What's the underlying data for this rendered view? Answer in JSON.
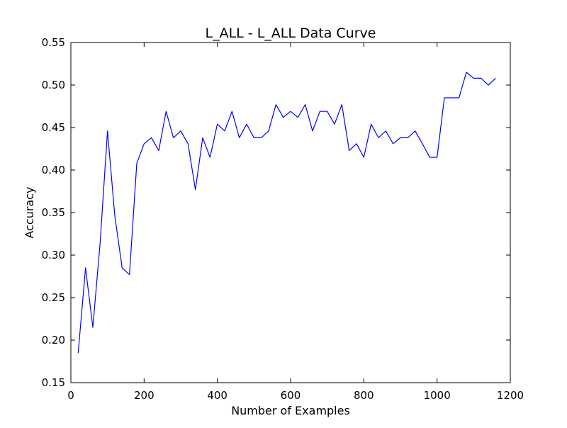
{
  "chart_data": {
    "type": "line",
    "title": "L_ALL - L_ALL Data Curve",
    "xlabel": "Number of Examples",
    "ylabel": "Accuracy",
    "xlim": [
      0,
      1200
    ],
    "ylim": [
      0.15,
      0.55
    ],
    "x_ticks": [
      0,
      200,
      400,
      600,
      800,
      1000,
      1200
    ],
    "x_tick_labels": [
      "0",
      "200",
      "400",
      "600",
      "800",
      "1000",
      "1200"
    ],
    "y_ticks": [
      0.15,
      0.2,
      0.25,
      0.3,
      0.35,
      0.4,
      0.45,
      0.5,
      0.55
    ],
    "y_tick_labels": [
      "0.15",
      "0.20",
      "0.25",
      "0.30",
      "0.35",
      "0.40",
      "0.45",
      "0.50",
      "0.55"
    ],
    "grid": false,
    "legend": "none",
    "series": [
      {
        "color": "#0000ff",
        "x": [
          20,
          40,
          60,
          80,
          100,
          120,
          140,
          160,
          180,
          200,
          220,
          240,
          260,
          280,
          300,
          320,
          340,
          360,
          380,
          400,
          420,
          440,
          460,
          480,
          500,
          520,
          540,
          560,
          580,
          600,
          620,
          640,
          660,
          680,
          700,
          720,
          740,
          760,
          780,
          800,
          820,
          840,
          860,
          880,
          900,
          920,
          940,
          960,
          980,
          1000,
          1020,
          1040,
          1060,
          1080,
          1100,
          1120,
          1140,
          1160
        ],
        "y": [
          0.185,
          0.285,
          0.215,
          0.315,
          0.446,
          0.346,
          0.285,
          0.277,
          0.408,
          0.431,
          0.438,
          0.423,
          0.469,
          0.438,
          0.446,
          0.431,
          0.377,
          0.438,
          0.415,
          0.454,
          0.446,
          0.469,
          0.438,
          0.454,
          0.438,
          0.438,
          0.446,
          0.477,
          0.462,
          0.469,
          0.462,
          0.477,
          0.446,
          0.469,
          0.469,
          0.454,
          0.477,
          0.423,
          0.431,
          0.415,
          0.454,
          0.438,
          0.446,
          0.431,
          0.438,
          0.438,
          0.446,
          0.431,
          0.415,
          0.415,
          0.485,
          0.485,
          0.485,
          0.515,
          0.508,
          0.508,
          0.5,
          0.508
        ]
      }
    ]
  }
}
